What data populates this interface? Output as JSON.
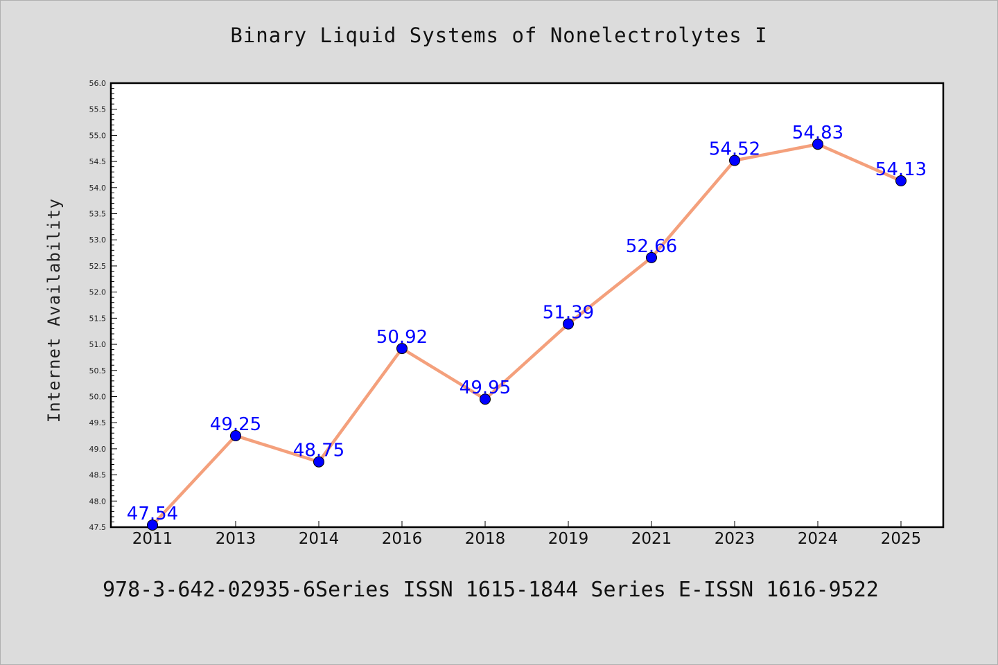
{
  "chart_data": {
    "type": "line",
    "title": "Binary Liquid Systems of Nonelectrolytes I",
    "xlabel": "",
    "ylabel": "Internet Availability",
    "categories": [
      "2011",
      "2013",
      "2014",
      "2016",
      "2018",
      "2019",
      "2021",
      "2023",
      "2024",
      "2025"
    ],
    "series": [
      {
        "values": [
          47.54,
          49.25,
          48.75,
          50.92,
          49.95,
          51.39,
          52.66,
          54.52,
          54.83,
          54.13
        ],
        "line_color": "#f4a07c",
        "marker_color": "#0000ff"
      }
    ],
    "data_labels": [
      "47.54",
      "49.25",
      "48.75",
      "50.92",
      "49.95",
      "51.39",
      "52.66",
      "54.52",
      "54.83",
      "54.13"
    ],
    "ylim": [
      47.5,
      56.0
    ],
    "yticks": [
      "47.5",
      "48.0",
      "48.5",
      "49.0",
      "49.5",
      "50.0",
      "50.5",
      "51.0",
      "51.5",
      "52.0",
      "52.5",
      "53.0",
      "53.5",
      "54.0",
      "54.5",
      "55.0",
      "55.5",
      "56.0"
    ],
    "grid": false,
    "legend": "none"
  },
  "footer_text": "978-3-642-02935-6Series ISSN 1615-1844 Series E-ISSN 1616-9522",
  "colors": {
    "background": "#dcdcdc",
    "plot_background": "#ffffff"
  }
}
